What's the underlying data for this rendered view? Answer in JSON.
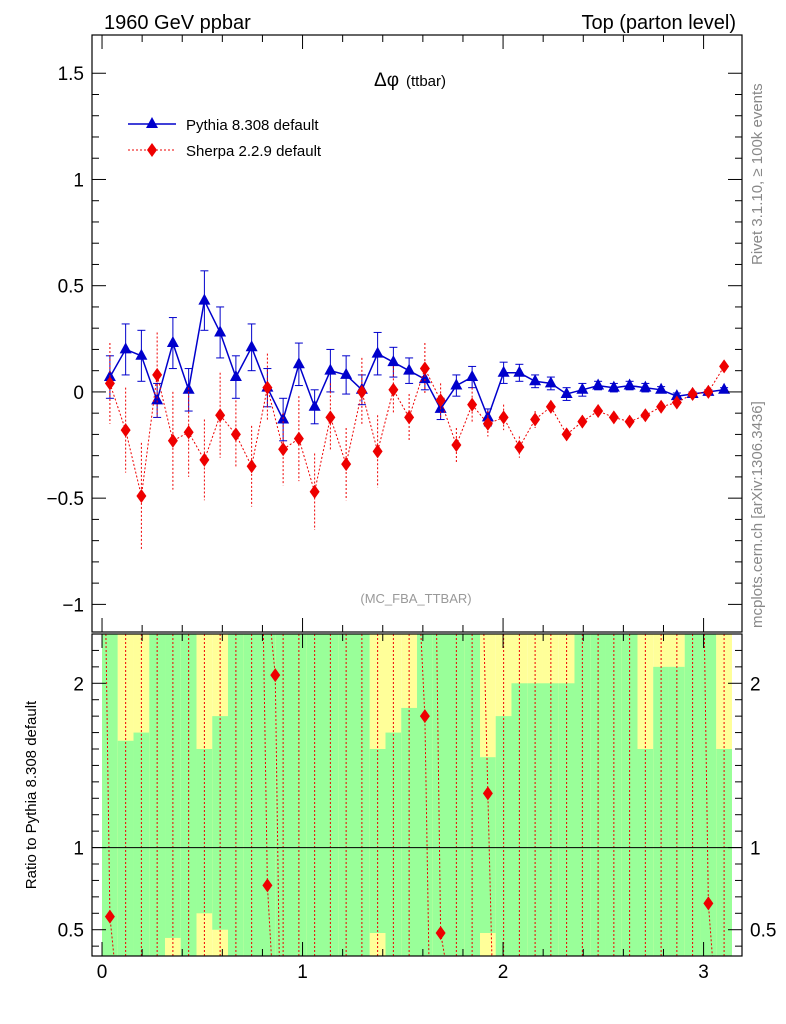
{
  "header": {
    "left": "1960 GeV ppbar",
    "right": "Top (parton level)"
  },
  "side_labels": {
    "rivet": "Rivet 3.1.10, ≥ 100k events",
    "mcplots": "mcplots.cern.ch [arXiv:1306.3436]"
  },
  "annotation": "(MC_FBA_TTBAR)",
  "chart_data": [
    {
      "type": "line",
      "panel": "main",
      "title_symbol": "Δφ",
      "title": "(ttbar)",
      "xlim": [
        -0.05,
        3.1916
      ],
      "ylim": [
        -1.13,
        1.68
      ],
      "xticks": [
        0,
        1,
        2,
        3
      ],
      "xtick_labels": [
        "",
        "",
        "",
        ""
      ],
      "yticks": [
        -1,
        -0.5,
        0,
        0.5,
        1,
        1.5
      ],
      "ytick_labels": [
        "−1",
        "−0.5",
        "0",
        "0.5",
        "1",
        "1.5"
      ],
      "legend": {
        "placement": "top-left",
        "entries": [
          "Pythia 8.308 default",
          "Sherpa 2.2.9 default"
        ]
      },
      "series": [
        {
          "name": "Pythia 8.308 default",
          "color": "#0000cc",
          "marker": "triangle",
          "line": "solid",
          "x": [
            0.0393,
            0.1178,
            0.1963,
            0.2749,
            0.3534,
            0.432,
            0.5105,
            0.589,
            0.6676,
            0.7461,
            0.8247,
            0.9032,
            0.9817,
            1.0603,
            1.1388,
            1.2174,
            1.2959,
            1.3744,
            1.453,
            1.5315,
            1.6101,
            1.6886,
            1.7671,
            1.8457,
            1.9242,
            2.0028,
            2.0813,
            2.1598,
            2.2384,
            2.3169,
            2.3955,
            2.474,
            2.5525,
            2.6311,
            2.7096,
            2.7882,
            2.8667,
            2.9452,
            3.0238,
            3.1023
          ],
          "y": [
            0.07,
            0.2,
            0.17,
            -0.04,
            0.23,
            0.01,
            0.43,
            0.28,
            0.07,
            0.21,
            0.02,
            -0.13,
            0.13,
            -0.07,
            0.1,
            0.08,
            0.01,
            0.18,
            0.14,
            0.1,
            0.06,
            -0.08,
            0.03,
            0.07,
            -0.12,
            0.09,
            0.09,
            0.05,
            0.04,
            -0.01,
            0.01,
            0.03,
            0.02,
            0.03,
            0.02,
            0.01,
            -0.02,
            -0.01,
            0.0,
            0.01
          ],
          "err": [
            0.1,
            0.12,
            0.12,
            0.08,
            0.12,
            0.1,
            0.14,
            0.12,
            0.1,
            0.11,
            0.09,
            0.1,
            0.1,
            0.08,
            0.1,
            0.09,
            0.07,
            0.1,
            0.07,
            0.06,
            0.05,
            0.05,
            0.05,
            0.05,
            0.04,
            0.05,
            0.04,
            0.03,
            0.03,
            0.03,
            0.03,
            0.02,
            0.02,
            0.02,
            0.02,
            0.015,
            0.015,
            0.01,
            0.01,
            0.01
          ]
        },
        {
          "name": "Sherpa 2.2.9 default",
          "color": "#ee0000",
          "marker": "diamond",
          "line": "dotted",
          "x": [
            0.0393,
            0.1178,
            0.1963,
            0.2749,
            0.3534,
            0.432,
            0.5105,
            0.589,
            0.6676,
            0.7461,
            0.8247,
            0.9032,
            0.9817,
            1.0603,
            1.1388,
            1.2174,
            1.2959,
            1.3744,
            1.453,
            1.5315,
            1.6101,
            1.6886,
            1.7671,
            1.8457,
            1.9242,
            2.0028,
            2.0813,
            2.1598,
            2.2384,
            2.3169,
            2.3955,
            2.474,
            2.5525,
            2.6311,
            2.7096,
            2.7882,
            2.8667,
            2.9452,
            3.0238,
            3.1023
          ],
          "y": [
            0.04,
            -0.18,
            -0.49,
            0.08,
            -0.23,
            -0.19,
            -0.32,
            -0.11,
            -0.2,
            -0.35,
            0.02,
            -0.27,
            -0.22,
            -0.47,
            -0.12,
            -0.34,
            0.0,
            -0.28,
            0.01,
            -0.12,
            0.11,
            -0.04,
            -0.25,
            -0.06,
            -0.15,
            -0.12,
            -0.26,
            -0.13,
            -0.07,
            -0.2,
            -0.14,
            -0.09,
            -0.12,
            -0.14,
            -0.11,
            -0.07,
            -0.05,
            -0.01,
            0.0,
            0.12
          ],
          "err": [
            0.19,
            0.2,
            0.25,
            0.2,
            0.23,
            0.21,
            0.19,
            0.2,
            0.16,
            0.19,
            0.16,
            0.17,
            0.2,
            0.18,
            0.16,
            0.17,
            0.16,
            0.17,
            0.11,
            0.11,
            0.12,
            0.08,
            0.08,
            0.08,
            0.06,
            0.06,
            0.05,
            0.04,
            0.03,
            0.03,
            0.03,
            0.03,
            0.02,
            0.02,
            0.02,
            0.02,
            0.015,
            0.01,
            0.01,
            0.01
          ]
        }
      ]
    },
    {
      "type": "line",
      "panel": "ratio",
      "ylabel": "Ratio to Pythia 8.308 default",
      "xlim": [
        -0.05,
        3.1916
      ],
      "ylim": [
        0.34,
        2.3
      ],
      "xticks": [
        0,
        1,
        2,
        3
      ],
      "xtick_labels": [
        "0",
        "1",
        "2",
        "3"
      ],
      "yticks": [
        0.5,
        1,
        2
      ],
      "ytick_labels": [
        "0.5",
        "1",
        "2"
      ],
      "reference_line": 1,
      "band_colors": {
        "inner": "#99ff99",
        "outer": "#ffff99"
      },
      "bin_edges": [
        0.0,
        0.0785,
        0.1571,
        0.2356,
        0.3142,
        0.3927,
        0.4712,
        0.5498,
        0.6283,
        0.7069,
        0.7854,
        0.8639,
        0.9425,
        1.021,
        1.0996,
        1.1781,
        1.2566,
        1.3352,
        1.4137,
        1.4923,
        1.5708,
        1.6493,
        1.7279,
        1.8064,
        1.885,
        1.9635,
        2.042,
        2.1206,
        2.1991,
        2.2777,
        2.3562,
        2.4347,
        2.5133,
        2.5918,
        2.6704,
        2.7489,
        2.8274,
        2.906,
        2.9845,
        3.0631,
        3.1416
      ],
      "band_inner_hi": [
        2.3,
        1.65,
        1.7,
        2.3,
        2.3,
        2.3,
        1.6,
        1.8,
        2.3,
        2.3,
        2.3,
        2.3,
        2.3,
        2.3,
        2.3,
        2.3,
        2.3,
        1.6,
        1.7,
        1.85,
        2.3,
        2.3,
        2.3,
        2.3,
        1.55,
        1.8,
        2.0,
        2.0,
        2.0,
        2.0,
        2.3,
        2.3,
        2.3,
        2.3,
        1.6,
        2.1,
        2.1,
        2.3,
        2.3,
        1.6
      ],
      "band_outer_hi": [
        2.3,
        2.3,
        2.3,
        2.3,
        2.3,
        2.3,
        2.3,
        2.3,
        2.3,
        2.3,
        2.3,
        2.3,
        2.3,
        2.3,
        2.3,
        2.3,
        2.3,
        2.3,
        2.3,
        2.3,
        2.3,
        2.3,
        2.3,
        2.3,
        2.3,
        2.3,
        2.3,
        2.3,
        2.3,
        2.3,
        2.3,
        2.3,
        2.3,
        2.3,
        2.3,
        2.3,
        2.3,
        2.3,
        2.3,
        2.3
      ],
      "band_inner_lo": [
        0.34,
        0.34,
        0.34,
        0.34,
        0.45,
        0.34,
        0.6,
        0.5,
        0.34,
        0.34,
        0.34,
        0.34,
        0.34,
        0.34,
        0.34,
        0.34,
        0.34,
        0.48,
        0.34,
        0.34,
        0.34,
        0.34,
        0.34,
        0.34,
        0.48,
        0.34,
        0.34,
        0.34,
        0.34,
        0.34,
        0.34,
        0.34,
        0.34,
        0.34,
        0.34,
        0.34,
        0.34,
        0.34,
        0.34,
        0.34
      ],
      "band_outer_lo": [
        0.34,
        0.34,
        0.34,
        0.34,
        0.34,
        0.34,
        0.34,
        0.34,
        0.34,
        0.34,
        0.34,
        0.34,
        0.34,
        0.34,
        0.34,
        0.34,
        0.34,
        0.34,
        0.34,
        0.34,
        0.34,
        0.34,
        0.34,
        0.34,
        0.34,
        0.34,
        0.34,
        0.34,
        0.34,
        0.34,
        0.34,
        0.34,
        0.34,
        0.34,
        0.34,
        0.34,
        0.34,
        0.34,
        0.34,
        0.34
      ],
      "series": [
        {
          "name": "Sherpa 2.2.9 default",
          "color": "#ee0000",
          "x": [
            0.0393,
            0.8247,
            0.8639,
            1.6101,
            1.6886,
            1.9242,
            3.0238
          ],
          "y": [
            0.58,
            0.77,
            2.05,
            1.8,
            0.48,
            1.33,
            0.66
          ]
        }
      ]
    }
  ]
}
